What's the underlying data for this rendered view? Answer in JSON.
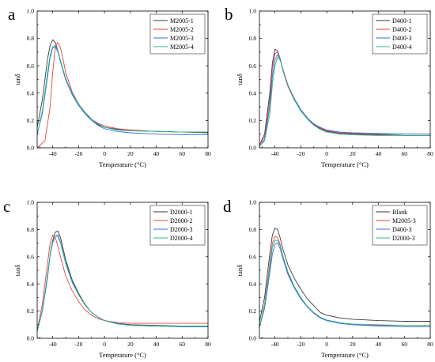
{
  "chart_data": [
    {
      "type": "line",
      "panel": "a",
      "xlabel": "Temperature (°C)",
      "ylabel": "tanδ",
      "xlim": [
        -52,
        80
      ],
      "ylim": [
        0.0,
        1.0
      ],
      "x_ticks": [
        -40,
        -20,
        0,
        20,
        40,
        60,
        80
      ],
      "x_tick_labels": [
        "-40",
        "-20",
        "0",
        "20",
        "40",
        "60",
        "80"
      ],
      "y_ticks": [
        0.0,
        0.2,
        0.4,
        0.6,
        0.8,
        1.0
      ],
      "y_tick_labels": [
        "0.0",
        "0.2",
        "0.4",
        "0.6",
        "0.8",
        "1.0"
      ],
      "legend_position": "top-right",
      "series": [
        {
          "name": "M2005-1",
          "color": "#3a3a3a",
          "x": [
            -52,
            -48,
            -44,
            -42,
            -40,
            -38,
            -36,
            -34,
            -30,
            -25,
            -20,
            -15,
            -10,
            -5,
            0,
            10,
            20,
            40,
            60,
            80
          ],
          "y": [
            0.15,
            0.35,
            0.65,
            0.75,
            0.79,
            0.77,
            0.71,
            0.63,
            0.5,
            0.39,
            0.31,
            0.25,
            0.21,
            0.17,
            0.15,
            0.135,
            0.125,
            0.12,
            0.115,
            0.11
          ]
        },
        {
          "name": "M2005-2",
          "color": "#e8404a",
          "x": [
            -52,
            -46,
            -42,
            -40,
            -38,
            -36,
            -34,
            -32,
            -30,
            -25,
            -20,
            -15,
            -10,
            -5,
            0,
            10,
            20,
            40,
            60,
            80
          ],
          "y": [
            0.0,
            0.05,
            0.3,
            0.55,
            0.74,
            0.77,
            0.73,
            0.65,
            0.55,
            0.41,
            0.32,
            0.26,
            0.21,
            0.18,
            0.16,
            0.14,
            0.13,
            0.12,
            0.115,
            0.115
          ]
        },
        {
          "name": "M2005-3",
          "color": "#2f6fe0",
          "x": [
            -52,
            -48,
            -44,
            -42,
            -40,
            -38,
            -36,
            -34,
            -30,
            -25,
            -20,
            -15,
            -10,
            -5,
            0,
            10,
            20,
            40,
            60,
            80
          ],
          "y": [
            0.1,
            0.25,
            0.52,
            0.66,
            0.73,
            0.74,
            0.7,
            0.63,
            0.5,
            0.39,
            0.31,
            0.25,
            0.2,
            0.165,
            0.14,
            0.12,
            0.11,
            0.1,
            0.095,
            0.095
          ]
        },
        {
          "name": "M2005-4",
          "color": "#2db88a",
          "x": [
            -52,
            -48,
            -44,
            -42,
            -40,
            -38,
            -36,
            -34,
            -30,
            -25,
            -20,
            -15,
            -10,
            -5,
            0,
            10,
            20,
            40,
            60,
            80
          ],
          "y": [
            0.1,
            0.27,
            0.55,
            0.68,
            0.74,
            0.75,
            0.71,
            0.64,
            0.51,
            0.4,
            0.32,
            0.26,
            0.21,
            0.175,
            0.15,
            0.13,
            0.125,
            0.12,
            0.115,
            0.115
          ]
        }
      ]
    },
    {
      "type": "line",
      "panel": "b",
      "xlabel": "Temperature (°C)",
      "ylabel": "tanδ",
      "xlim": [
        -52,
        80
      ],
      "ylim": [
        0.0,
        1.0
      ],
      "x_ticks": [
        -40,
        -20,
        0,
        20,
        40,
        60,
        80
      ],
      "x_tick_labels": [
        "-40",
        "-20",
        "0",
        "20",
        "40",
        "60",
        "80"
      ],
      "y_ticks": [
        0.0,
        0.2,
        0.4,
        0.6,
        0.8,
        1.0
      ],
      "y_tick_labels": [
        "0.0",
        "0.2",
        "0.4",
        "0.6",
        "0.8",
        "1.0"
      ],
      "legend_position": "top-right",
      "series": [
        {
          "name": "D400-1",
          "color": "#3a3a3a",
          "x": [
            -52,
            -48,
            -44,
            -42,
            -40,
            -38,
            -36,
            -34,
            -30,
            -25,
            -20,
            -15,
            -10,
            -5,
            0,
            10,
            20,
            40,
            60,
            80
          ],
          "y": [
            0.02,
            0.1,
            0.4,
            0.62,
            0.72,
            0.71,
            0.65,
            0.57,
            0.45,
            0.35,
            0.27,
            0.21,
            0.17,
            0.14,
            0.12,
            0.105,
            0.1,
            0.095,
            0.09,
            0.09
          ]
        },
        {
          "name": "D400-2",
          "color": "#e8404a",
          "x": [
            -52,
            -48,
            -44,
            -42,
            -40,
            -38,
            -36,
            -34,
            -30,
            -25,
            -20,
            -15,
            -10,
            -5,
            0,
            10,
            20,
            40,
            60,
            80
          ],
          "y": [
            0.02,
            0.08,
            0.35,
            0.58,
            0.69,
            0.7,
            0.65,
            0.57,
            0.45,
            0.35,
            0.27,
            0.21,
            0.17,
            0.145,
            0.125,
            0.11,
            0.105,
            0.1,
            0.1,
            0.1
          ]
        },
        {
          "name": "D400-3",
          "color": "#2f6fe0",
          "x": [
            -52,
            -48,
            -44,
            -42,
            -40,
            -38,
            -36,
            -34,
            -30,
            -25,
            -20,
            -15,
            -10,
            -5,
            0,
            10,
            20,
            40,
            60,
            80
          ],
          "y": [
            0.01,
            0.06,
            0.3,
            0.52,
            0.64,
            0.68,
            0.65,
            0.58,
            0.46,
            0.36,
            0.28,
            0.22,
            0.175,
            0.15,
            0.13,
            0.115,
            0.11,
            0.105,
            0.1,
            0.1
          ]
        },
        {
          "name": "D400-4",
          "color": "#2db88a",
          "x": [
            -52,
            -48,
            -44,
            -42,
            -40,
            -38,
            -36,
            -34,
            -30,
            -25,
            -20,
            -15,
            -10,
            -5,
            0,
            10,
            20,
            40,
            60,
            80
          ],
          "y": [
            0.01,
            0.05,
            0.25,
            0.46,
            0.6,
            0.66,
            0.64,
            0.58,
            0.46,
            0.35,
            0.27,
            0.21,
            0.165,
            0.135,
            0.115,
            0.1,
            0.095,
            0.09,
            0.09,
            0.09
          ]
        }
      ]
    },
    {
      "type": "line",
      "panel": "c",
      "xlabel": "Temperature (°C)",
      "ylabel": "tanδ",
      "xlim": [
        -52,
        80
      ],
      "ylim": [
        0.0,
        1.0
      ],
      "x_ticks": [
        -40,
        -20,
        0,
        20,
        40,
        60,
        80
      ],
      "x_tick_labels": [
        "-40",
        "-20",
        "0",
        "20",
        "40",
        "60",
        "80"
      ],
      "y_ticks": [
        0.0,
        0.2,
        0.4,
        0.6,
        0.8,
        1.0
      ],
      "y_tick_labels": [
        "0.0",
        "0.2",
        "0.4",
        "0.6",
        "0.8",
        "1.0"
      ],
      "legend_position": "top-right",
      "series": [
        {
          "name": "D2000-1",
          "color": "#3a3a3a",
          "x": [
            -52,
            -48,
            -44,
            -42,
            -40,
            -38,
            -36,
            -34,
            -30,
            -25,
            -20,
            -15,
            -10,
            -5,
            0,
            10,
            20,
            40,
            60,
            80
          ],
          "y": [
            0.05,
            0.2,
            0.45,
            0.62,
            0.72,
            0.78,
            0.79,
            0.74,
            0.58,
            0.43,
            0.33,
            0.25,
            0.19,
            0.155,
            0.13,
            0.11,
            0.1,
            0.095,
            0.09,
            0.09
          ]
        },
        {
          "name": "D2000-2",
          "color": "#e8404a",
          "x": [
            -52,
            -48,
            -44,
            -42,
            -40,
            -38,
            -36,
            -34,
            -30,
            -25,
            -20,
            -15,
            -10,
            -5,
            0,
            10,
            20,
            40,
            60,
            80
          ],
          "y": [
            0.06,
            0.25,
            0.55,
            0.7,
            0.76,
            0.74,
            0.68,
            0.6,
            0.46,
            0.35,
            0.27,
            0.21,
            0.17,
            0.145,
            0.13,
            0.115,
            0.11,
            0.11,
            0.11,
            0.11
          ]
        },
        {
          "name": "D2000-3",
          "color": "#2f6fe0",
          "x": [
            -52,
            -48,
            -44,
            -42,
            -40,
            -38,
            -36,
            -34,
            -30,
            -25,
            -20,
            -15,
            -10,
            -5,
            0,
            10,
            20,
            40,
            60,
            80
          ],
          "y": [
            0.05,
            0.2,
            0.45,
            0.61,
            0.7,
            0.75,
            0.76,
            0.71,
            0.56,
            0.42,
            0.32,
            0.245,
            0.19,
            0.155,
            0.13,
            0.11,
            0.095,
            0.09,
            0.085,
            0.085
          ]
        },
        {
          "name": "D2000-4",
          "color": "#2db88a",
          "x": [
            -52,
            -48,
            -44,
            -42,
            -40,
            -38,
            -36,
            -34,
            -30,
            -25,
            -20,
            -15,
            -10,
            -5,
            0,
            10,
            20,
            40,
            60,
            80
          ],
          "y": [
            0.05,
            0.21,
            0.47,
            0.62,
            0.71,
            0.75,
            0.75,
            0.7,
            0.55,
            0.41,
            0.32,
            0.245,
            0.19,
            0.155,
            0.13,
            0.105,
            0.095,
            0.09,
            0.09,
            0.09
          ]
        }
      ]
    },
    {
      "type": "line",
      "panel": "d",
      "xlabel": "Temperature (°C)",
      "ylabel": "tanδ",
      "xlim": [
        -52,
        80
      ],
      "ylim": [
        0.0,
        1.0
      ],
      "x_ticks": [
        -40,
        -20,
        0,
        20,
        40,
        60,
        80
      ],
      "x_tick_labels": [
        "-40",
        "-20",
        "0",
        "20",
        "40",
        "60",
        "80"
      ],
      "y_ticks": [
        0.0,
        0.2,
        0.4,
        0.6,
        0.8,
        1.0
      ],
      "y_tick_labels": [
        "0.0",
        "0.2",
        "0.4",
        "0.6",
        "0.8",
        "1.0"
      ],
      "legend_position": "top-right",
      "series": [
        {
          "name": "Blank",
          "color": "#3a3a3a",
          "x": [
            -52,
            -48,
            -44,
            -42,
            -40,
            -38,
            -36,
            -34,
            -30,
            -25,
            -20,
            -15,
            -10,
            -5,
            0,
            10,
            20,
            40,
            60,
            80
          ],
          "y": [
            0.12,
            0.3,
            0.62,
            0.76,
            0.81,
            0.8,
            0.74,
            0.66,
            0.54,
            0.44,
            0.36,
            0.29,
            0.24,
            0.19,
            0.17,
            0.15,
            0.14,
            0.13,
            0.125,
            0.125
          ]
        },
        {
          "name": "M2005-3",
          "color": "#e8404a",
          "x": [
            -52,
            -48,
            -44,
            -42,
            -40,
            -38,
            -36,
            -34,
            -30,
            -25,
            -20,
            -15,
            -10,
            -5,
            0,
            10,
            20,
            40,
            60,
            80
          ],
          "y": [
            0.08,
            0.25,
            0.55,
            0.7,
            0.75,
            0.74,
            0.69,
            0.61,
            0.48,
            0.37,
            0.29,
            0.23,
            0.185,
            0.15,
            0.13,
            0.11,
            0.1,
            0.095,
            0.095,
            0.095
          ]
        },
        {
          "name": "D400-3",
          "color": "#2f6fe0",
          "x": [
            -52,
            -48,
            -44,
            -42,
            -40,
            -38,
            -36,
            -34,
            -30,
            -25,
            -20,
            -15,
            -10,
            -5,
            0,
            10,
            20,
            40,
            60,
            80
          ],
          "y": [
            0.08,
            0.22,
            0.48,
            0.62,
            0.69,
            0.7,
            0.66,
            0.59,
            0.47,
            0.37,
            0.29,
            0.23,
            0.185,
            0.15,
            0.13,
            0.11,
            0.1,
            0.09,
            0.085,
            0.085
          ]
        },
        {
          "name": "D2000-3",
          "color": "#2db88a",
          "x": [
            -52,
            -48,
            -44,
            -42,
            -40,
            -38,
            -36,
            -34,
            -30,
            -25,
            -20,
            -15,
            -10,
            -5,
            0,
            10,
            20,
            40,
            60,
            80
          ],
          "y": [
            0.08,
            0.24,
            0.52,
            0.67,
            0.72,
            0.72,
            0.68,
            0.61,
            0.49,
            0.38,
            0.3,
            0.235,
            0.19,
            0.155,
            0.135,
            0.115,
            0.105,
            0.1,
            0.095,
            0.095
          ]
        }
      ]
    }
  ]
}
